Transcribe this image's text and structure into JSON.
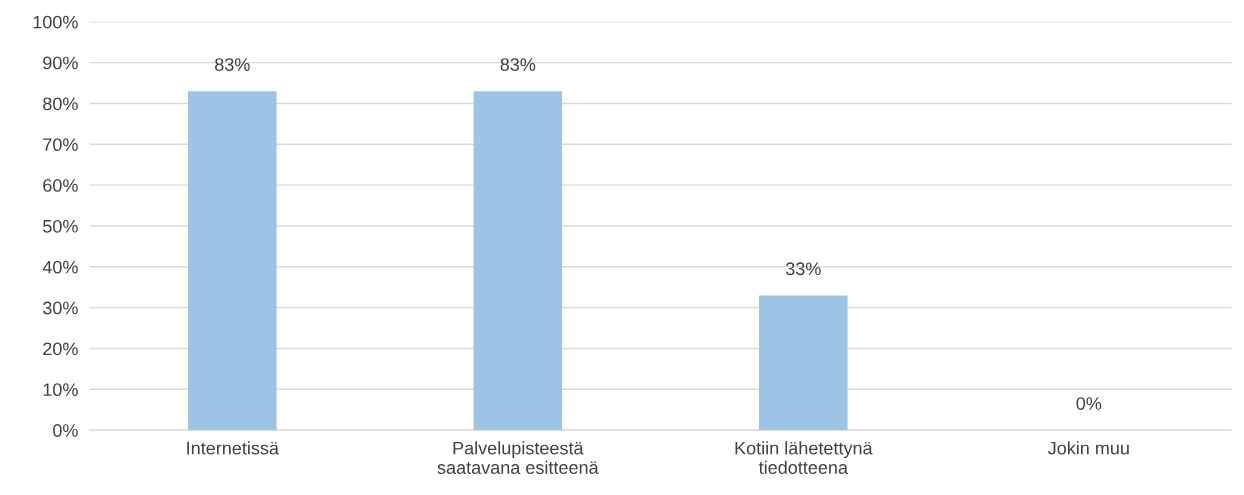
{
  "chart_data": {
    "type": "bar",
    "categories": [
      "Internetissä",
      "Palvelupisteestä\nsaatavana esitteenä",
      "Kotiin lähetettynä\ntiedotteena",
      "Jokin muu"
    ],
    "values": [
      83,
      83,
      33,
      0
    ],
    "value_labels": [
      "83%",
      "83%",
      "33%",
      "0%"
    ],
    "color": "#9dc3e6",
    "ylim": [
      0,
      100
    ],
    "yticks": [
      {
        "value": 0,
        "label": "0%"
      },
      {
        "value": 10,
        "label": "10%"
      },
      {
        "value": 20,
        "label": "20%"
      },
      {
        "value": 30,
        "label": "30%"
      },
      {
        "value": 40,
        "label": "40%"
      },
      {
        "value": 50,
        "label": "50%"
      },
      {
        "value": 60,
        "label": "60%"
      },
      {
        "value": 70,
        "label": "70%"
      },
      {
        "value": 80,
        "label": "80%"
      },
      {
        "value": 90,
        "label": "90%"
      },
      {
        "value": 100,
        "label": "100%"
      }
    ],
    "grid": "y",
    "legend": false
  }
}
